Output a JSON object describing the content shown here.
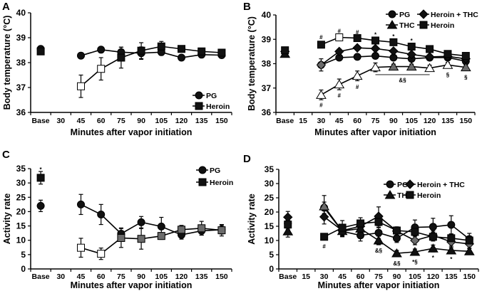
{
  "chart_data": [
    {
      "panel": "A",
      "type": "line",
      "xlabel": "Minutes after vapor initiation",
      "ylabel": "Body temperature (°C)",
      "ylim": [
        36,
        40
      ],
      "yticks": [
        "36",
        "37",
        "38",
        "39",
        "40"
      ],
      "categories": [
        "Base",
        "30",
        "45",
        "60",
        "75",
        "90",
        "105",
        "120",
        "135",
        "150"
      ],
      "legend_placement": "bottom-right",
      "series": [
        {
          "name": "PG",
          "marker": "circle",
          "values": [
            38.55,
            null,
            38.28,
            38.52,
            38.42,
            38.38,
            38.42,
            38.2,
            38.32,
            38.3
          ],
          "err": [
            0.05,
            null,
            0.12,
            0.06,
            0.2,
            0.25,
            0.12,
            0.06,
            0.08,
            0.06
          ],
          "fill": [
            "filled",
            null,
            "filled",
            "filled",
            "filled",
            "filled",
            "filled",
            "filled",
            "filled",
            "filled"
          ]
        },
        {
          "name": "Heroin",
          "marker": "square",
          "values": [
            38.45,
            null,
            37.05,
            37.75,
            38.2,
            38.48,
            38.65,
            38.55,
            38.45,
            38.4
          ],
          "err": [
            0.05,
            null,
            0.45,
            0.45,
            0.42,
            0.32,
            0.2,
            0.1,
            0.1,
            0.08
          ],
          "fill": [
            "filled",
            null,
            "open",
            "open",
            "filled",
            "filled",
            "filled",
            "filled",
            "filled",
            "filled"
          ]
        }
      ],
      "annotations": []
    },
    {
      "panel": "B",
      "type": "line",
      "xlabel": "Minutes after vapor initiation",
      "ylabel": "Body temperature (°C)",
      "ylim": [
        36,
        40
      ],
      "yticks": [
        "36",
        "37",
        "38",
        "39",
        "40"
      ],
      "categories": [
        "Base",
        "15",
        "30",
        "45",
        "60",
        "75",
        "90",
        "105",
        "120",
        "135",
        "150"
      ],
      "legend_placement": "top-right",
      "series": [
        {
          "name": "PG",
          "marker": "circle",
          "values": [
            38.5,
            null,
            37.95,
            38.25,
            38.28,
            38.32,
            38.25,
            38.2,
            38.25,
            38.25,
            38.1
          ],
          "err": [
            0.05,
            null,
            0.1,
            0.08,
            0.08,
            0.08,
            0.1,
            0.1,
            0.08,
            0.08,
            0.08
          ],
          "fill": [
            "filled",
            null,
            "filled",
            "filled",
            "filled",
            "filled",
            "filled",
            "filled",
            "filled",
            "filled",
            "filled"
          ]
        },
        {
          "name": "Heroin + THC",
          "marker": "diamond",
          "values": [
            38.5,
            null,
            37.95,
            38.5,
            38.65,
            38.62,
            38.52,
            38.38,
            38.28,
            38.3,
            38.2
          ],
          "err": [
            0.05,
            null,
            0.25,
            0.1,
            0.08,
            0.08,
            0.08,
            0.08,
            0.08,
            0.08,
            0.08
          ],
          "fill": [
            "filled",
            null,
            "gray",
            "filled",
            "filled",
            "filled",
            "filled",
            "filled",
            "filled",
            "filled",
            "filled"
          ]
        },
        {
          "name": "THC",
          "marker": "triangle",
          "values": [
            38.4,
            null,
            36.72,
            37.15,
            37.5,
            37.85,
            37.88,
            37.88,
            37.82,
            37.95,
            37.85
          ],
          "err": [
            0.05,
            null,
            0.2,
            0.22,
            0.2,
            0.18,
            0.1,
            0.1,
            0.12,
            0.1,
            0.1
          ],
          "fill": [
            "filled",
            null,
            "open",
            "open",
            "open",
            "open",
            "gray",
            "gray",
            "open",
            "open",
            "gray"
          ]
        },
        {
          "name": "Heroin",
          "marker": "square",
          "values": [
            38.55,
            null,
            38.78,
            39.08,
            39.05,
            38.95,
            38.88,
            38.7,
            38.6,
            38.4,
            38.32
          ],
          "err": [
            0.05,
            null,
            0.1,
            0.08,
            0.06,
            0.06,
            0.06,
            0.06,
            0.06,
            0.06,
            0.06
          ],
          "fill": [
            "filled",
            null,
            "filled",
            "open",
            "filled",
            "filled",
            "filled",
            "filled",
            "filled",
            "filled",
            "filled"
          ]
        }
      ],
      "annotations": [
        {
          "text": "#",
          "category": "30",
          "value": 39.1
        },
        {
          "text": "#",
          "category": "45",
          "value": 39.35
        },
        {
          "text": "#",
          "category": "60",
          "value": 39.3
        },
        {
          "text": "*",
          "category": "75",
          "value": 39.2
        },
        {
          "text": "*",
          "category": "90",
          "value": 39.12
        },
        {
          "text": "*",
          "category": "105",
          "value": 38.95
        },
        {
          "text": "#",
          "category": "30",
          "value": 36.3
        },
        {
          "text": "#",
          "category": "45",
          "value": 36.7
        },
        {
          "text": "#",
          "category": "60",
          "value": 37.05
        },
        {
          "text": "&§",
          "category": "90",
          "value": 37.33,
          "offset": 0.5
        },
        {
          "text": "§",
          "category": "135",
          "value": 37.55
        },
        {
          "text": "§",
          "category": "150",
          "value": 37.45
        }
      ],
      "sig_lines": [
        {
          "from": "75",
          "to": "120",
          "value": 37.55
        }
      ]
    },
    {
      "panel": "C",
      "type": "line",
      "xlabel": "Minutes after vapor initiation",
      "ylabel": "Activity rate",
      "ylim": [
        0,
        35
      ],
      "yticks": [
        "0",
        "5",
        "10",
        "15",
        "20",
        "25",
        "30",
        "35"
      ],
      "categories": [
        "Base",
        "30",
        "45",
        "60",
        "75",
        "90",
        "105",
        "120",
        "135",
        "150"
      ],
      "legend_placement": "top-right",
      "series": [
        {
          "name": "PG",
          "marker": "circle",
          "values": [
            22,
            null,
            22.5,
            19,
            12.3,
            16.3,
            14.8,
            11.9,
            13.3,
            13.7
          ],
          "err": [
            2,
            null,
            3.5,
            3.5,
            2,
            2,
            3.2,
            1.5,
            1.5,
            1.5
          ],
          "fill": [
            "filled",
            null,
            "filled",
            "filled",
            "filled",
            "filled",
            "filled",
            "filled",
            "filled",
            "filled"
          ]
        },
        {
          "name": "Heroin",
          "marker": "square",
          "values": [
            31.8,
            null,
            7.4,
            5.3,
            10.8,
            10.5,
            11.5,
            13.7,
            14.2,
            13.5
          ],
          "err": [
            2.2,
            null,
            3.3,
            2,
            3.3,
            3.6,
            1.2,
            1.5,
            2.4,
            2
          ],
          "fill": [
            "filled",
            null,
            "open",
            "open",
            "gray",
            "gray",
            "gray",
            "gray",
            "gray",
            "gray"
          ]
        }
      ],
      "annotations": [
        {
          "text": "*",
          "category": "Base",
          "value": 34.8
        }
      ]
    },
    {
      "panel": "D",
      "type": "line",
      "xlabel": "Minutes after vapor initiation",
      "ylabel": "Activity rate",
      "ylim": [
        0,
        35
      ],
      "yticks": [
        "0",
        "5",
        "10",
        "15",
        "20",
        "25",
        "30",
        "35"
      ],
      "categories": [
        "Base",
        "15",
        "30",
        "45",
        "60",
        "75",
        "90",
        "105",
        "120",
        "135",
        "150"
      ],
      "legend_placement": "top-right",
      "series": [
        {
          "name": "PG",
          "marker": "circle",
          "values": [
            16,
            null,
            21.5,
            13.2,
            11.8,
            12.7,
            10.8,
            14.6,
            14.8,
            15.5,
            10.5
          ],
          "err": [
            2,
            null,
            2,
            1.5,
            2,
            2,
            1.5,
            2.6,
            3,
            3.2,
            2
          ],
          "fill": [
            "filled",
            null,
            "filled",
            "filled",
            "filled",
            "filled",
            "filled",
            "filled",
            "filled",
            "filled",
            "filled"
          ]
        },
        {
          "name": "Heroin + THC",
          "marker": "diamond",
          "values": [
            18.2,
            null,
            18.3,
            13.5,
            15,
            18.5,
            13.3,
            10,
            11.8,
            9.5,
            8.8
          ],
          "err": [
            2,
            null,
            2.5,
            2,
            2,
            3.3,
            1.5,
            1.5,
            1.5,
            1.5,
            1.5
          ],
          "fill": [
            "filled",
            null,
            "filled",
            "filled",
            "filled",
            "filled",
            "filled",
            "gray",
            "filled",
            "gray",
            "gray"
          ]
        },
        {
          "name": "THC",
          "marker": "triangle",
          "values": [
            13.2,
            null,
            22,
            13.3,
            14.2,
            10,
            5.5,
            6,
            7.2,
            6.5,
            6.2
          ],
          "err": [
            2,
            null,
            3.8,
            2,
            2,
            1.5,
            1,
            1,
            1.2,
            1,
            1
          ],
          "fill": [
            "filled",
            null,
            "gray",
            "filled",
            "filled",
            "filled",
            "filled",
            "filled",
            "filled",
            "filled",
            "filled"
          ]
        },
        {
          "name": "Heroin",
          "marker": "square",
          "values": [
            15.6,
            null,
            11.3,
            14.5,
            16,
            16.5,
            13.5,
            13,
            11.3,
            10.8,
            10
          ],
          "err": [
            2,
            null,
            1,
            2.5,
            2,
            2,
            1.2,
            1.5,
            1.5,
            1.5,
            1.5
          ],
          "fill": [
            "filled",
            null,
            "filled",
            "filled",
            "filled",
            "filled",
            "filled",
            "filled",
            "filled",
            "filled",
            "filled"
          ]
        }
      ],
      "annotations": [
        {
          "text": "#",
          "category": "30",
          "value": 8
        },
        {
          "text": "&§",
          "category": "75",
          "value": 6.5
        },
        {
          "text": "&§",
          "category": "90",
          "value": 2
        },
        {
          "text": "*§",
          "category": "105",
          "value": 2.5
        },
        {
          "text": "*",
          "category": "120",
          "value": 4
        },
        {
          "text": "*",
          "category": "135",
          "value": 3.5
        }
      ]
    }
  ],
  "colors": {
    "filled": "#111111",
    "open": "#ffffff",
    "gray": "#6b6b6b",
    "axis": "#000000"
  }
}
